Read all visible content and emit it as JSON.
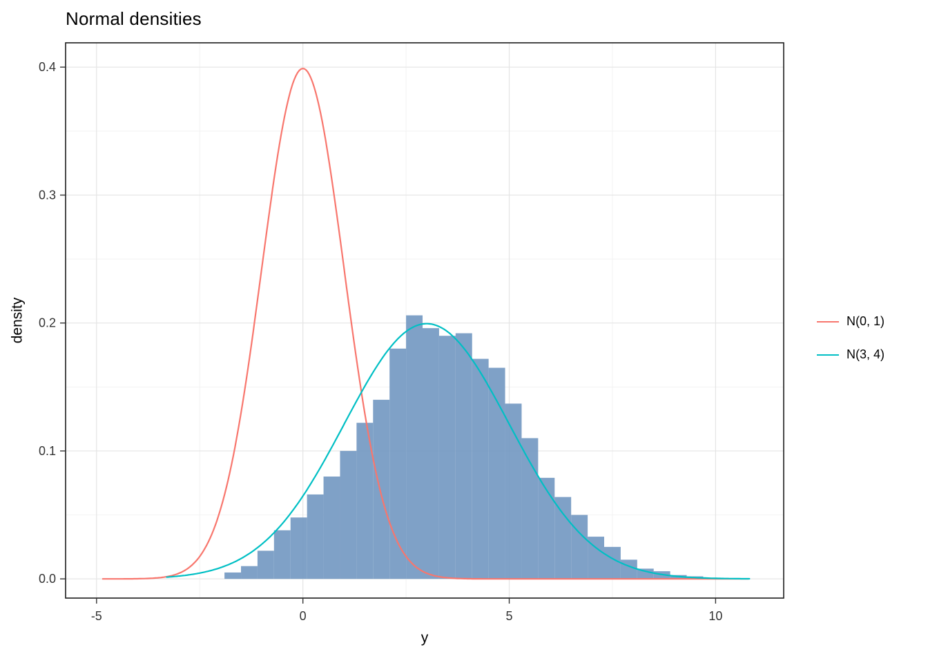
{
  "chart_data": {
    "type": "line",
    "subtype": "normal density curves over sample histogram",
    "title": "Normal densities",
    "xlabel": "y",
    "ylabel": "density",
    "xlim": [
      -5.75,
      11.65
    ],
    "ylim": [
      -0.015,
      0.419
    ],
    "grid": true,
    "legend_position": "right",
    "panel_background": "#FFFFFF",
    "major_grid_color": "#E4E4E4",
    "minor_grid_color": "#F2F2F2",
    "panel_border_color": "#1A1A1A",
    "axis_tick_color": "#333333",
    "axis_text_color": "#333333",
    "x_ticks": {
      "values": [
        -5,
        0,
        5,
        10
      ],
      "labels": [
        "-5",
        "0",
        "5",
        "10"
      ]
    },
    "y_ticks": {
      "values": [
        0,
        0.1,
        0.2,
        0.3,
        0.4
      ],
      "labels": [
        "0.0",
        "0.1",
        "0.2",
        "0.3",
        "0.4"
      ]
    },
    "x_minor_gridlines": [
      -2.5,
      2.5,
      7.5
    ],
    "y_minor_gridlines": [
      0.05,
      0.15,
      0.25,
      0.35
    ],
    "series": [
      {
        "name": "N(0, 1)",
        "color": "#F8766D",
        "curve": "normal_density",
        "mean": 0,
        "sd": 1,
        "peak_x": 0,
        "peak_y": 0.399,
        "x_range": [
          -4.85,
          10.8
        ],
        "line_width": 2.2
      },
      {
        "name": "N(3, 4)",
        "color": "#00BFC4",
        "curve": "normal_density",
        "mean": 3,
        "sd": 2,
        "peak_x": 3,
        "peak_y": 0.199,
        "x_range": [
          -3.3,
          10.85
        ],
        "line_width": 2.2
      }
    ],
    "histogram": {
      "name": "sample-histogram",
      "fill": "#7197C1",
      "opacity": 0.9,
      "binwidth": 0.4,
      "bins_format": "[bin_left_edge, density]",
      "bins": [
        [
          -1.9,
          0.005
        ],
        [
          -1.5,
          0.01
        ],
        [
          -1.1,
          0.022
        ],
        [
          -0.7,
          0.038
        ],
        [
          -0.3,
          0.048
        ],
        [
          0.1,
          0.066
        ],
        [
          0.5,
          0.08
        ],
        [
          0.9,
          0.1
        ],
        [
          1.3,
          0.122
        ],
        [
          1.7,
          0.14
        ],
        [
          2.1,
          0.18
        ],
        [
          2.5,
          0.206
        ],
        [
          2.9,
          0.196
        ],
        [
          3.3,
          0.19
        ],
        [
          3.7,
          0.192
        ],
        [
          4.1,
          0.172
        ],
        [
          4.5,
          0.165
        ],
        [
          4.9,
          0.137
        ],
        [
          5.3,
          0.11
        ],
        [
          5.7,
          0.079
        ],
        [
          6.1,
          0.064
        ],
        [
          6.5,
          0.05
        ],
        [
          6.9,
          0.033
        ],
        [
          7.3,
          0.025
        ],
        [
          7.7,
          0.015
        ],
        [
          8.1,
          0.008
        ],
        [
          8.5,
          0.006
        ],
        [
          8.9,
          0.003
        ],
        [
          9.3,
          0.002
        ]
      ]
    },
    "legend": {
      "position": "right",
      "entries": [
        {
          "label": "N(0, 1)",
          "color": "#F8766D"
        },
        {
          "label": "N(3, 4)",
          "color": "#00BFC4"
        }
      ]
    }
  }
}
